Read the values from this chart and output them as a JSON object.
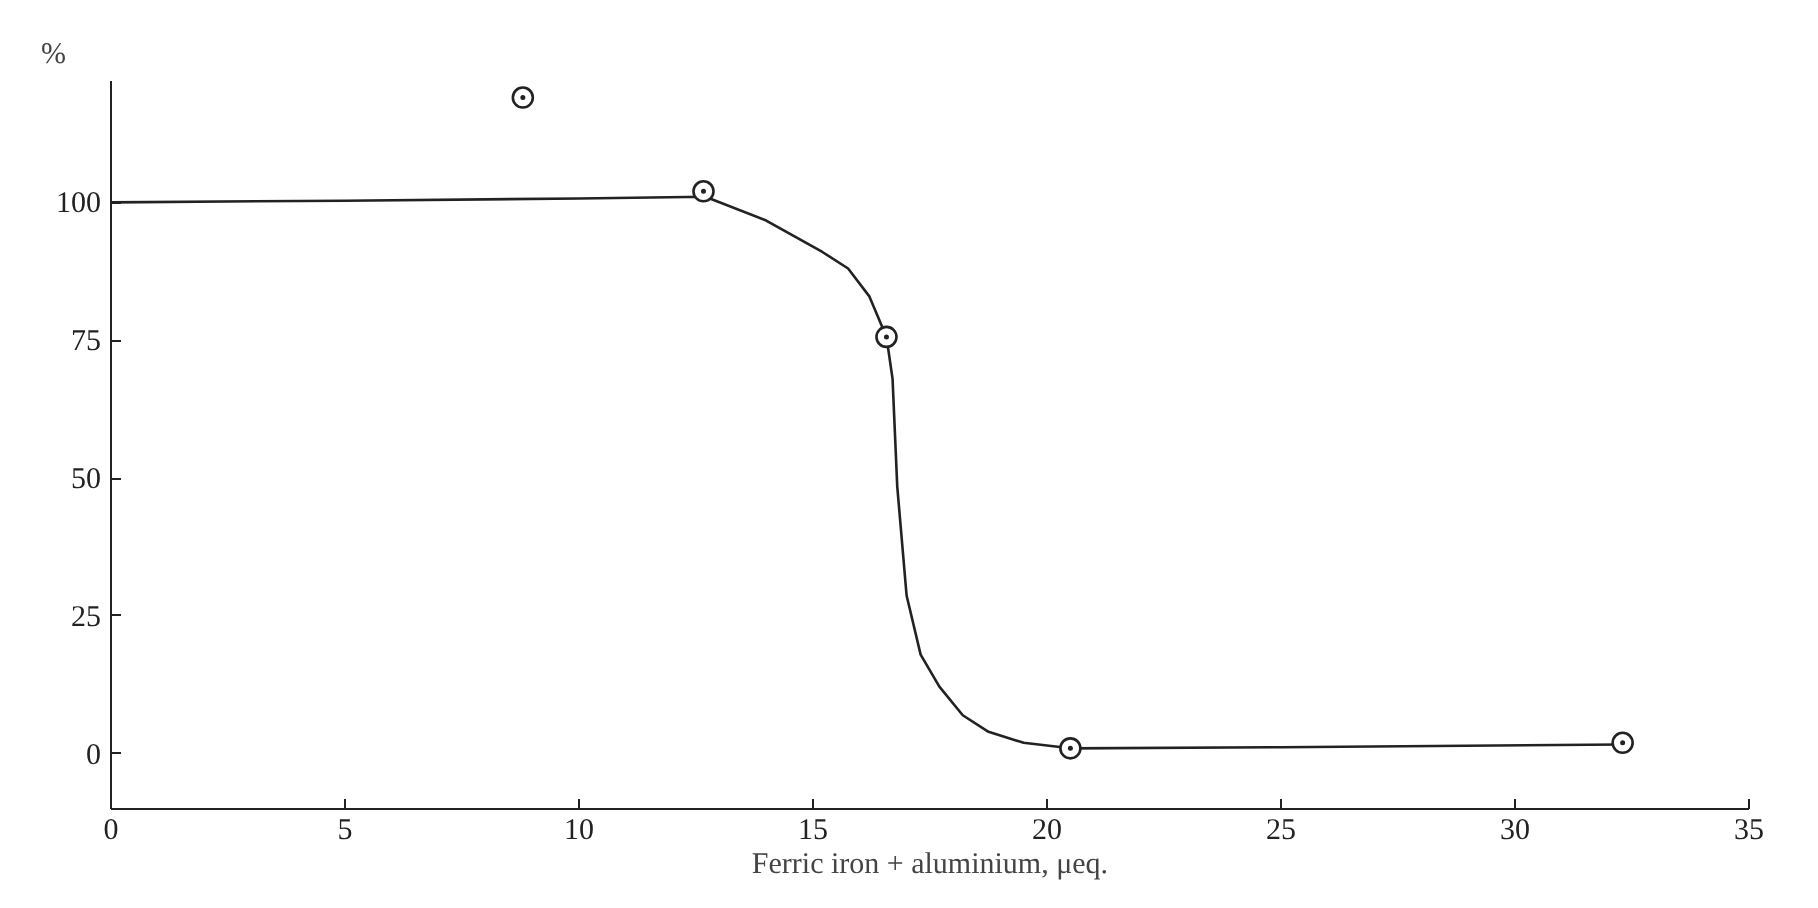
{
  "chart_data": {
    "type": "line",
    "xlabel": "Ferric iron + aluminium, μeq.",
    "ylabel": "%",
    "xlim": [
      0,
      35
    ],
    "ylim": [
      -10,
      122
    ],
    "xticks": [
      0,
      5,
      10,
      15,
      20,
      25,
      30,
      35
    ],
    "yticks": [
      0,
      25,
      50,
      75,
      100
    ],
    "grid": false,
    "series": [
      {
        "color": "#222222",
        "marker": "none",
        "line_style": "solid",
        "x": [
          0,
          5,
          10,
          12.7,
          14.0,
          15.2,
          15.75,
          16.2,
          16.57,
          16.7,
          16.8,
          17.0,
          17.3,
          17.7,
          18.2,
          18.75,
          19.5,
          20.5,
          25,
          32.3
        ],
        "values": [
          100,
          100.3,
          100.7,
          101,
          96.7,
          91,
          88,
          83,
          75.6,
          68,
          48.5,
          28.7,
          18,
          12.2,
          7,
          4,
          2,
          1,
          1.2,
          1.7
        ]
      },
      {
        "type": "scatter",
        "color": "#222222",
        "marker": "circle",
        "x": [
          8.8,
          12.66,
          16.57,
          20.5,
          32.3
        ],
        "values": [
          119,
          102,
          75.6,
          1,
          2
        ]
      }
    ]
  }
}
